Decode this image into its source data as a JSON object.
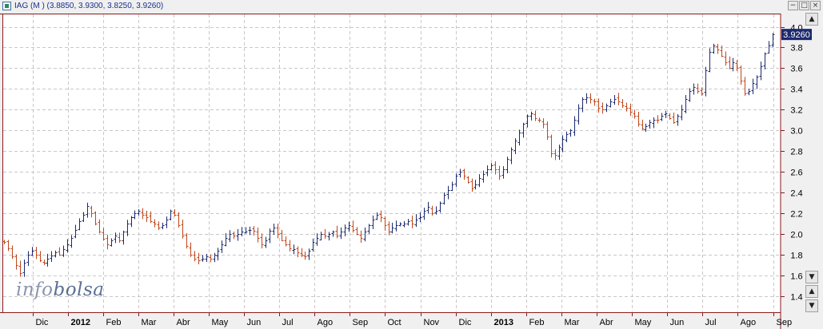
{
  "window": {
    "title": "IAG (M ) (3.8850, 3.9300, 3.8250, 3.9260)",
    "buttons": [
      "−",
      "□",
      "×"
    ]
  },
  "logo": {
    "part1": "info",
    "part2": "bolsa"
  },
  "scroll_buttons": [
    "▲",
    "▼",
    "▲",
    "▼"
  ],
  "colors": {
    "background": "#ffffff",
    "grid": "#c8c8c8",
    "frame": "#8b1a1a",
    "up_bar": "#1c2a6e",
    "down_bar": "#c0461c",
    "last_price_box": "#1c2a6e",
    "axis_text": "#000000"
  },
  "chart_data": {
    "type": "ohlc",
    "last_price_label": "3.9260",
    "ylim": [
      1.25,
      4.12
    ],
    "y_ticks": [
      "1.4",
      "1.6",
      "1.8",
      "2.0",
      "2.2",
      "2.4",
      "2.6",
      "2.8",
      "3.0",
      "3.2",
      "3.4",
      "3.6",
      "3.8",
      "4.0"
    ],
    "x_ticks": [
      "Dic",
      "2012",
      "Feb",
      "Mar",
      "Abr",
      "May",
      "Jun",
      "Jul",
      "Ago",
      "Sep",
      "Oct",
      "Nov",
      "Dic",
      "2013",
      "Feb",
      "Mar",
      "Abr",
      "May",
      "Jun",
      "Jul",
      "Ago",
      "Sep"
    ],
    "x_tick_bold": [
      false,
      true,
      false,
      false,
      false,
      false,
      false,
      false,
      false,
      false,
      false,
      false,
      false,
      true,
      false,
      false,
      false,
      false,
      false,
      false,
      false,
      false
    ],
    "grid": true,
    "series": [
      {
        "close": [
          1.92,
          1.86,
          1.78,
          1.7,
          1.62,
          1.72,
          1.8,
          1.84,
          1.8,
          1.74,
          1.72,
          1.76,
          1.79,
          1.82,
          1.8,
          1.85,
          1.9,
          1.96,
          2.04,
          2.12,
          2.18,
          2.27,
          2.2,
          2.1,
          2.02,
          1.95,
          1.9,
          1.94,
          1.98,
          1.94,
          2.02,
          2.1,
          2.16,
          2.2,
          2.22,
          2.18,
          2.16,
          2.12,
          2.1,
          2.06,
          2.08,
          2.14,
          2.22,
          2.18,
          2.08,
          1.98,
          1.88,
          1.8,
          1.76,
          1.74,
          1.76,
          1.78,
          1.76,
          1.8,
          1.84,
          1.9,
          1.96,
          2.0,
          1.98,
          2.0,
          2.02,
          2.02,
          2.04,
          2.03,
          1.96,
          1.9,
          1.94,
          2.03,
          2.06,
          2.0,
          1.94,
          1.9,
          1.86,
          1.85,
          1.82,
          1.8,
          1.78,
          1.84,
          1.92,
          1.96,
          2.0,
          1.98,
          2.0,
          2.02,
          1.98,
          2.02,
          2.06,
          2.08,
          2.04,
          2.0,
          1.96,
          2.02,
          2.08,
          2.14,
          2.18,
          2.16,
          2.08,
          2.02,
          2.06,
          2.08,
          2.1,
          2.1,
          2.12,
          2.1,
          2.14,
          2.16,
          2.22,
          2.26,
          2.2,
          2.22,
          2.3,
          2.38,
          2.42,
          2.48,
          2.56,
          2.6,
          2.56,
          2.5,
          2.44,
          2.48,
          2.54,
          2.58,
          2.62,
          2.66,
          2.62,
          2.56,
          2.62,
          2.72,
          2.82,
          2.9,
          2.98,
          3.06,
          3.14,
          3.16,
          3.12,
          3.1,
          3.06,
          2.94,
          2.78,
          2.76,
          2.84,
          2.92,
          2.96,
          3.0,
          3.1,
          3.22,
          3.3,
          3.32,
          3.3,
          3.28,
          3.22,
          3.2,
          3.24,
          3.28,
          3.3,
          3.28,
          3.24,
          3.22,
          3.18,
          3.14,
          3.06,
          3.02,
          3.04,
          3.08,
          3.1,
          3.1,
          3.14,
          3.16,
          3.12,
          3.08,
          3.14,
          3.2,
          3.3,
          3.38,
          3.42,
          3.38,
          3.36,
          3.58,
          3.76,
          3.82,
          3.78,
          3.72,
          3.66,
          3.6,
          3.66,
          3.6,
          3.48,
          3.36,
          3.38,
          3.46,
          3.52,
          3.62,
          3.74,
          3.82,
          3.93
        ]
      }
    ]
  }
}
